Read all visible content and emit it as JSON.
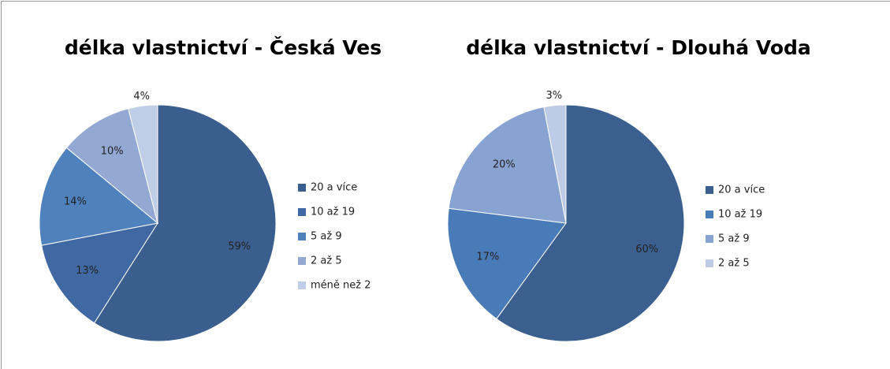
{
  "chart_data": [
    {
      "type": "pie",
      "title": "délka vlastnictví - Česká Ves",
      "categories": [
        "20 a více",
        "10 až 19",
        "5 až 9",
        "2 až 5",
        "méně než 2"
      ],
      "values": [
        59,
        13,
        14,
        10,
        4
      ],
      "value_labels": [
        "59%",
        "13%",
        "14%",
        "10%",
        "4%"
      ],
      "colors": [
        "#3a5f8e",
        "#4069a3",
        "#4f81bd",
        "#93a9d4",
        "#c0cde6"
      ],
      "legend": "right"
    },
    {
      "type": "pie",
      "title": "délka vlastnictví - Dlouhá Voda",
      "categories": [
        "20 a více",
        "10 až 19",
        "5 až 9",
        "2 až 5"
      ],
      "values": [
        60,
        17,
        20,
        3
      ],
      "value_labels": [
        "60%",
        "17%",
        "20%",
        "3%"
      ],
      "colors": [
        "#3b6090",
        "#4a7bb9",
        "#88a3d1",
        "#bdcbe6"
      ],
      "legend": "right"
    }
  ]
}
